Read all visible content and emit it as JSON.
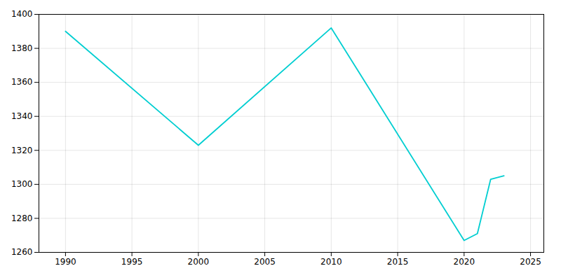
{
  "chart_data": {
    "type": "line",
    "x": [
      1990,
      2000,
      2010,
      2020,
      2021,
      2022,
      2023
    ],
    "values": [
      1390,
      1323,
      1392,
      1267,
      1271,
      1303,
      1305
    ],
    "color": "#00CED1",
    "xlim": [
      1988,
      2026
    ],
    "ylim": [
      1260,
      1400
    ],
    "xticks": [
      1990,
      1995,
      2000,
      2005,
      2010,
      2015,
      2020,
      2025
    ],
    "yticks": [
      1260,
      1280,
      1300,
      1320,
      1340,
      1360,
      1380,
      1400
    ],
    "grid": true
  }
}
